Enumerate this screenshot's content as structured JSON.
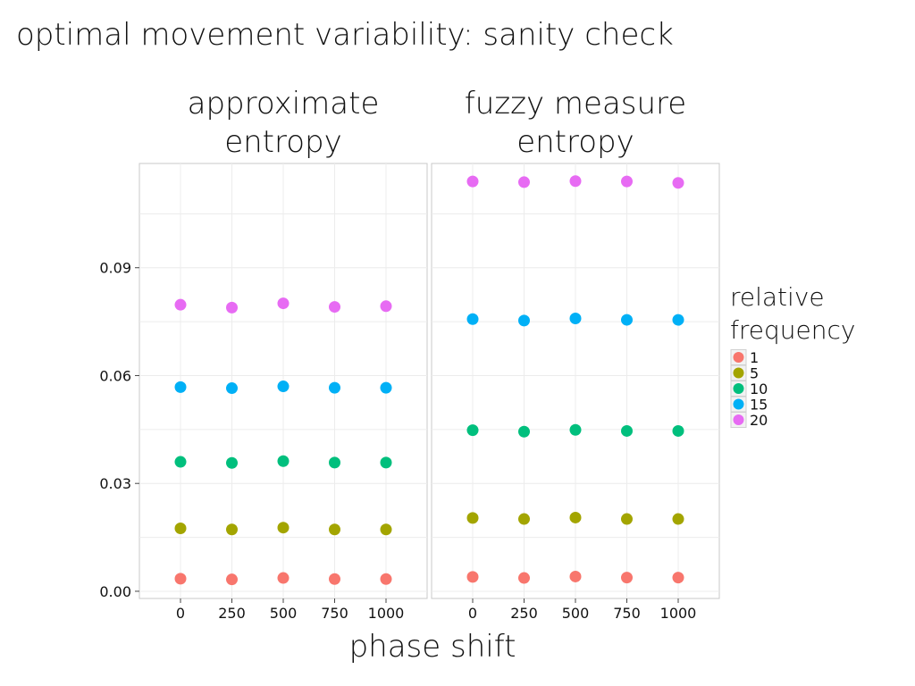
{
  "page": {
    "title": "optimal movement variability: sanity check"
  },
  "chart_data": {
    "type": "scatter",
    "xlabel": "phase shift",
    "ylim": [
      -0.002,
      0.119
    ],
    "yticks": [
      0.0,
      0.03,
      0.06,
      0.09
    ],
    "ytick_labels": [
      "0.00",
      "0.03",
      "0.06",
      "0.09"
    ],
    "x": [
      0,
      250,
      500,
      750,
      1000
    ],
    "xlim": [
      -200,
      1200
    ],
    "grid": true,
    "legend": {
      "title_lines": [
        "relative",
        "frequency"
      ],
      "position": "right"
    },
    "series_levels": [
      {
        "name": "1",
        "color": "#F8766D"
      },
      {
        "name": "5",
        "color": "#A3A500"
      },
      {
        "name": "10",
        "color": "#00BF7D"
      },
      {
        "name": "15",
        "color": "#00B0F6"
      },
      {
        "name": "20",
        "color": "#E76BF3"
      }
    ],
    "panels": [
      {
        "title_lines": [
          "approximate",
          "entropy"
        ],
        "series": [
          {
            "name": "1",
            "values": [
              0.0035,
              0.0033,
              0.0037,
              0.0034,
              0.0034
            ]
          },
          {
            "name": "5",
            "values": [
              0.0175,
              0.0172,
              0.0177,
              0.0172,
              0.0172
            ]
          },
          {
            "name": "10",
            "values": [
              0.036,
              0.0357,
              0.0362,
              0.0358,
              0.0358
            ]
          },
          {
            "name": "15",
            "values": [
              0.0568,
              0.0565,
              0.057,
              0.0566,
              0.0566
            ]
          },
          {
            "name": "20",
            "values": [
              0.0797,
              0.0789,
              0.0801,
              0.0791,
              0.0793
            ]
          }
        ]
      },
      {
        "title_lines": [
          "fuzzy measure",
          "entropy"
        ],
        "series": [
          {
            "name": "1",
            "values": [
              0.004,
              0.0037,
              0.0041,
              0.0038,
              0.0038
            ]
          },
          {
            "name": "5",
            "values": [
              0.0204,
              0.0201,
              0.0205,
              0.0201,
              0.0201
            ]
          },
          {
            "name": "10",
            "values": [
              0.0448,
              0.0444,
              0.0449,
              0.0446,
              0.0446
            ]
          },
          {
            "name": "15",
            "values": [
              0.0757,
              0.0753,
              0.0759,
              0.0755,
              0.0755
            ]
          },
          {
            "name": "20",
            "values": [
              0.114,
              0.1138,
              0.1141,
              0.114,
              0.1136
            ]
          }
        ]
      }
    ]
  }
}
